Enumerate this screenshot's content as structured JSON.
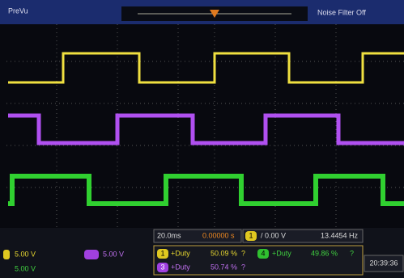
{
  "header": {
    "title": "PreVu",
    "noise_filter": "Noise Filter Off"
  },
  "channels": [
    {
      "scale": "5.00 V"
    },
    {
      "scale": "5.00 V"
    },
    {
      "scale": "5.00 V"
    }
  ],
  "timebase": {
    "scale": "20.0ms",
    "position": "0.00000 s"
  },
  "trigger": {
    "source": "1",
    "level": "/ 0.00 V",
    "frequency": "13.4454 Hz"
  },
  "measurements": [
    {
      "source": "1",
      "name": "+Duty",
      "value": "50.09 %",
      "status": "?"
    },
    {
      "source": "4",
      "name": "+Duty",
      "value": "49.86 %",
      "status": "?"
    },
    {
      "source": "3",
      "name": "+Duty",
      "value": "50.74 %",
      "status": "?"
    }
  ],
  "clock": "20:39:36"
}
